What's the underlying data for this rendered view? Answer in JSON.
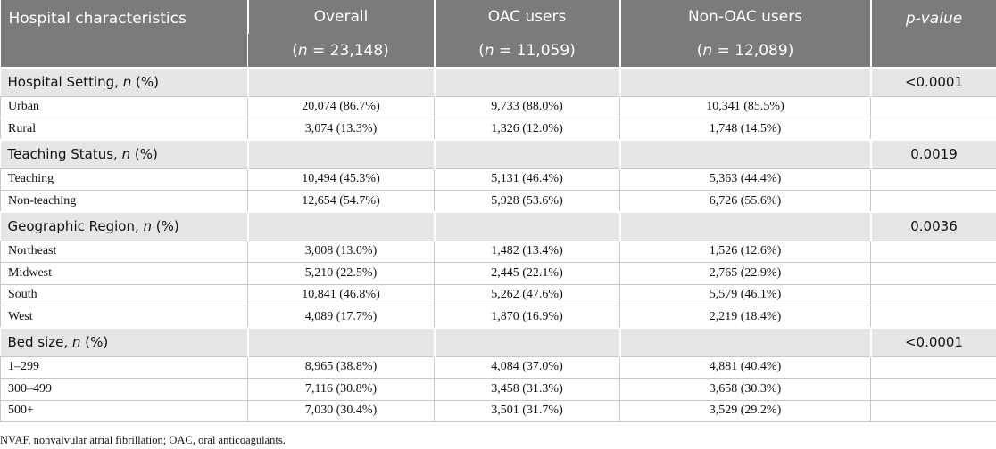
{
  "header": {
    "col1": "Hospital characteristics",
    "col2": "Overall",
    "col3": "OAC users",
    "col4": "Non-OAC users",
    "col5": "p-value",
    "n_overall_value": " = 23,148)",
    "n_oac_value": " = 11,059)",
    "n_non_oac_value": " = 12,089)",
    "n_prefix": "(",
    "n_symbol": "n"
  },
  "sections": [
    {
      "title": "Hospital Setting, ",
      "italic": "n",
      "suffix": " (%)",
      "p_value": "<0.0001",
      "rows": [
        {
          "label": "Urban",
          "overall": "20,074 (86.7%)",
          "oac": "9,733 (88.0%)",
          "non_oac": "10,341 (85.5%)"
        },
        {
          "label": "Rural",
          "overall": "3,074 (13.3%)",
          "oac": "1,326 (12.0%)",
          "non_oac": "1,748 (14.5%)"
        }
      ]
    },
    {
      "title": "Teaching Status, ",
      "italic": "n",
      "suffix": " (%)",
      "p_value": "0.0019",
      "rows": [
        {
          "label": "Teaching",
          "overall": "10,494 (45.3%)",
          "oac": "5,131 (46.4%)",
          "non_oac": "5,363 (44.4%)"
        },
        {
          "label": "Non-teaching",
          "overall": "12,654 (54.7%)",
          "oac": "5,928 (53.6%)",
          "non_oac": "6,726 (55.6%)"
        }
      ]
    },
    {
      "title": "Geographic Region, ",
      "italic": "n",
      "suffix": " (%)",
      "p_value": "0.0036",
      "rows": [
        {
          "label": "Northeast",
          "overall": "3,008 (13.0%)",
          "oac": "1,482 (13.4%)",
          "non_oac": "1,526 (12.6%)"
        },
        {
          "label": "Midwest",
          "overall": "5,210 (22.5%)",
          "oac": "2,445 (22.1%)",
          "non_oac": "2,765 (22.9%)"
        },
        {
          "label": "South",
          "overall": "10,841 (46.8%)",
          "oac": "5,262 (47.6%)",
          "non_oac": "5,579 (46.1%)"
        },
        {
          "label": "West",
          "overall": "4,089 (17.7%)",
          "oac": "1,870 (16.9%)",
          "non_oac": "2,219 (18.4%)"
        }
      ]
    },
    {
      "title": "Bed size, ",
      "italic": "n",
      "suffix": " (%)",
      "p_value": "<0.0001",
      "rows": [
        {
          "label": "1–299",
          "overall": "8,965 (38.8%)",
          "oac": "4,084 (37.0%)",
          "non_oac": "4,881 (40.4%)"
        },
        {
          "label": "300–499",
          "overall": "7,116 (30.8%)",
          "oac": "3,458 (31.3%)",
          "non_oac": "3,658 (30.3%)"
        },
        {
          "label": "500+",
          "overall": "7,030 (30.4%)",
          "oac": "3,501 (31.7%)",
          "non_oac": "3,529 (29.2%)"
        }
      ]
    }
  ],
  "footnote": "NVAF, nonvalvular atrial fibrillation; OAC, oral anticoagulants.",
  "chart_data": {
    "type": "table",
    "columns": [
      "Hospital characteristics",
      "Overall (n = 23,148)",
      "OAC users (n = 11,059)",
      "Non-OAC users (n = 12,089)",
      "p-value"
    ],
    "rows": [
      [
        "Hospital Setting, n (%)",
        "",
        "",
        "",
        "<0.0001"
      ],
      [
        "Urban",
        "20,074 (86.7%)",
        "9,733 (88.0%)",
        "10,341 (85.5%)",
        ""
      ],
      [
        "Rural",
        "3,074 (13.3%)",
        "1,326 (12.0%)",
        "1,748 (14.5%)",
        ""
      ],
      [
        "Teaching Status, n (%)",
        "",
        "",
        "",
        "0.0019"
      ],
      [
        "Teaching",
        "10,494 (45.3%)",
        "5,131 (46.4%)",
        "5,363 (44.4%)",
        ""
      ],
      [
        "Non-teaching",
        "12,654 (54.7%)",
        "5,928 (53.6%)",
        "6,726 (55.6%)",
        ""
      ],
      [
        "Geographic Region, n (%)",
        "",
        "",
        "",
        "0.0036"
      ],
      [
        "Northeast",
        "3,008 (13.0%)",
        "1,482 (13.4%)",
        "1,526 (12.6%)",
        ""
      ],
      [
        "Midwest",
        "5,210 (22.5%)",
        "2,445 (22.1%)",
        "2,765 (22.9%)",
        ""
      ],
      [
        "South",
        "10,841 (46.8%)",
        "5,262 (47.6%)",
        "5,579 (46.1%)",
        ""
      ],
      [
        "West",
        "4,089 (17.7%)",
        "1,870 (16.9%)",
        "2,219 (18.4%)",
        ""
      ],
      [
        "Bed size, n (%)",
        "",
        "",
        "",
        "<0.0001"
      ],
      [
        "1–299",
        "8,965 (38.8%)",
        "4,084 (37.0%)",
        "4,881 (40.4%)",
        ""
      ],
      [
        "300–499",
        "7,116 (30.8%)",
        "3,458 (31.3%)",
        "3,658 (30.3%)",
        ""
      ],
      [
        "500+",
        "7,030 (30.4%)",
        "3,501 (31.7%)",
        "3,529 (29.2%)",
        ""
      ]
    ]
  }
}
